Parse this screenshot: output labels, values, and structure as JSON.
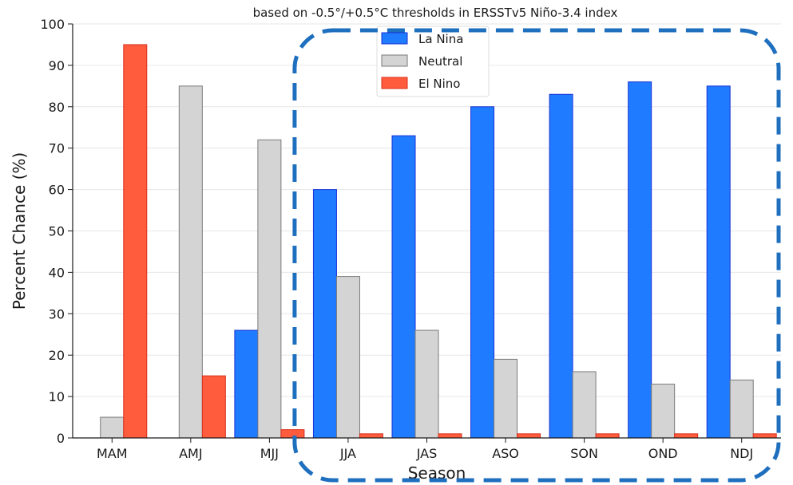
{
  "chart_data": {
    "type": "bar",
    "title": "based on -0.5°/+0.5°C thresholds in ERSSTv5 Niño-3.4 index",
    "xlabel": "Season",
    "ylabel": "Percent Chance (%)",
    "ylim": [
      0,
      100
    ],
    "yticks": [
      0,
      10,
      20,
      30,
      40,
      50,
      60,
      70,
      80,
      90,
      100
    ],
    "categories": [
      "MAM",
      "AMJ",
      "MJJ",
      "JJA",
      "JAS",
      "ASO",
      "SON",
      "OND",
      "NDJ"
    ],
    "series": [
      {
        "name": "La Nina",
        "color": "#1f7bff",
        "edge": "#1a33d6",
        "values": [
          0,
          0,
          26,
          60,
          73,
          80,
          83,
          86,
          85
        ]
      },
      {
        "name": "Neutral",
        "color": "#d4d4d4",
        "edge": "#7a7a7a",
        "values": [
          5,
          85,
          72,
          39,
          26,
          19,
          16,
          13,
          14
        ]
      },
      {
        "name": "El Nino",
        "color": "#ff5b3d",
        "edge": "#d9301a",
        "values": [
          95,
          15,
          2,
          1,
          1,
          1,
          1,
          1,
          1
        ]
      }
    ],
    "grid": true,
    "legend_position": "top-center",
    "annotation": {
      "shape": "dashed-rounded-rectangle",
      "color": "#1f6fbf",
      "spans": [
        "JJA",
        "NDJ"
      ]
    }
  }
}
